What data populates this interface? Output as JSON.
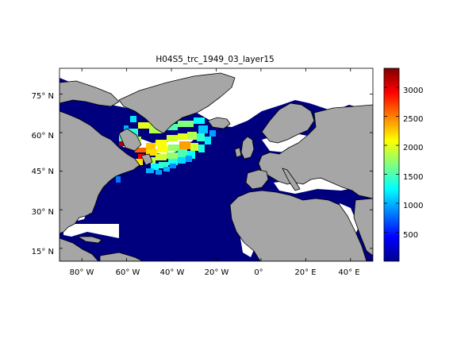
{
  "title": "H04S5_trc_1949_03_layer15",
  "map": {
    "lon_range": [
      -90,
      50
    ],
    "lat_range": [
      10,
      85
    ],
    "lat_ticks": [
      {
        "value": 75,
        "label": "75° N"
      },
      {
        "value": 60,
        "label": "60° N"
      },
      {
        "value": 45,
        "label": "45° N"
      },
      {
        "value": 30,
        "label": "30° N"
      },
      {
        "value": 15,
        "label": "15° N"
      }
    ],
    "lon_ticks": [
      {
        "value": -80,
        "label": "80° W"
      },
      {
        "value": -60,
        "label": "60° W"
      },
      {
        "value": -40,
        "label": "40° W"
      },
      {
        "value": -20,
        "label": "20° W"
      },
      {
        "value": 0,
        "label": "0°"
      },
      {
        "value": 20,
        "label": "20° E"
      },
      {
        "value": 40,
        "label": "40° E"
      }
    ],
    "colors": {
      "ocean_low": "#00007f",
      "land": "#a6a6a6",
      "nodata": "#ffffff",
      "coast": "#000000"
    }
  },
  "colorbar": {
    "range": [
      0,
      3330
    ],
    "ticks": [
      {
        "value": 500,
        "label": "500"
      },
      {
        "value": 1000,
        "label": "1000"
      },
      {
        "value": 1500,
        "label": "1500"
      },
      {
        "value": 2000,
        "label": "2000"
      },
      {
        "value": 2500,
        "label": "2500"
      },
      {
        "value": 3000,
        "label": "3000"
      }
    ],
    "colormap": "jet"
  }
}
